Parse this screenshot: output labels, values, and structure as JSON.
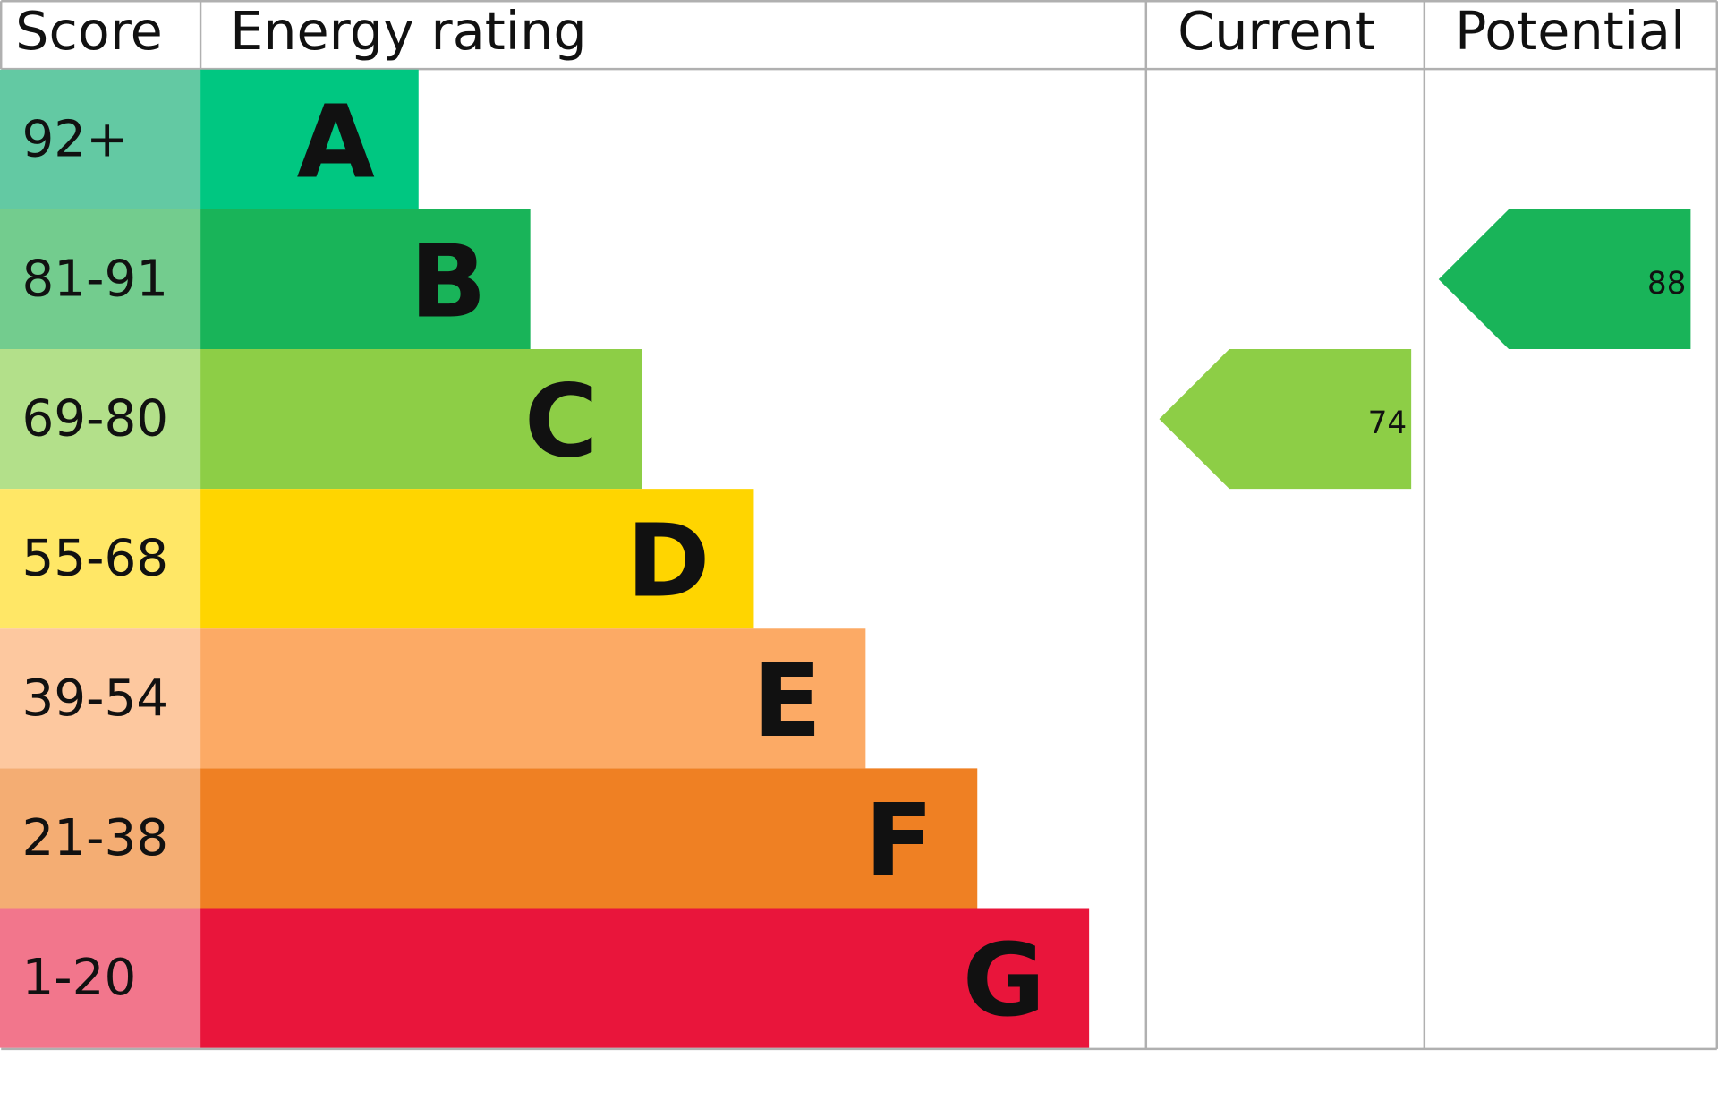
{
  "chart_data": {
    "type": "energy-rating",
    "headers": {
      "score": "Score",
      "rating": "Energy rating",
      "current": "Current",
      "potential": "Potential"
    },
    "bands": [
      {
        "range": "92+",
        "letter": "A",
        "color": "#00c781",
        "score_color": "#63c9a3"
      },
      {
        "range": "81-91",
        "letter": "B",
        "color": "#19b459",
        "score_color": "#73cc8e"
      },
      {
        "range": "69-80",
        "letter": "C",
        "color": "#8dce46",
        "score_color": "#b3e08a"
      },
      {
        "range": "55-68",
        "letter": "D",
        "color": "#ffd500",
        "score_color": "#ffe766"
      },
      {
        "range": "39-54",
        "letter": "E",
        "color": "#fcaa65",
        "score_color": "#fdc89f"
      },
      {
        "range": "21-38",
        "letter": "F",
        "color": "#ef8023",
        "score_color": "#f4ad73"
      },
      {
        "range": "1-20",
        "letter": "G",
        "color": "#e9153b",
        "score_color": "#f2768c"
      }
    ],
    "current": 74,
    "potential": 88
  }
}
